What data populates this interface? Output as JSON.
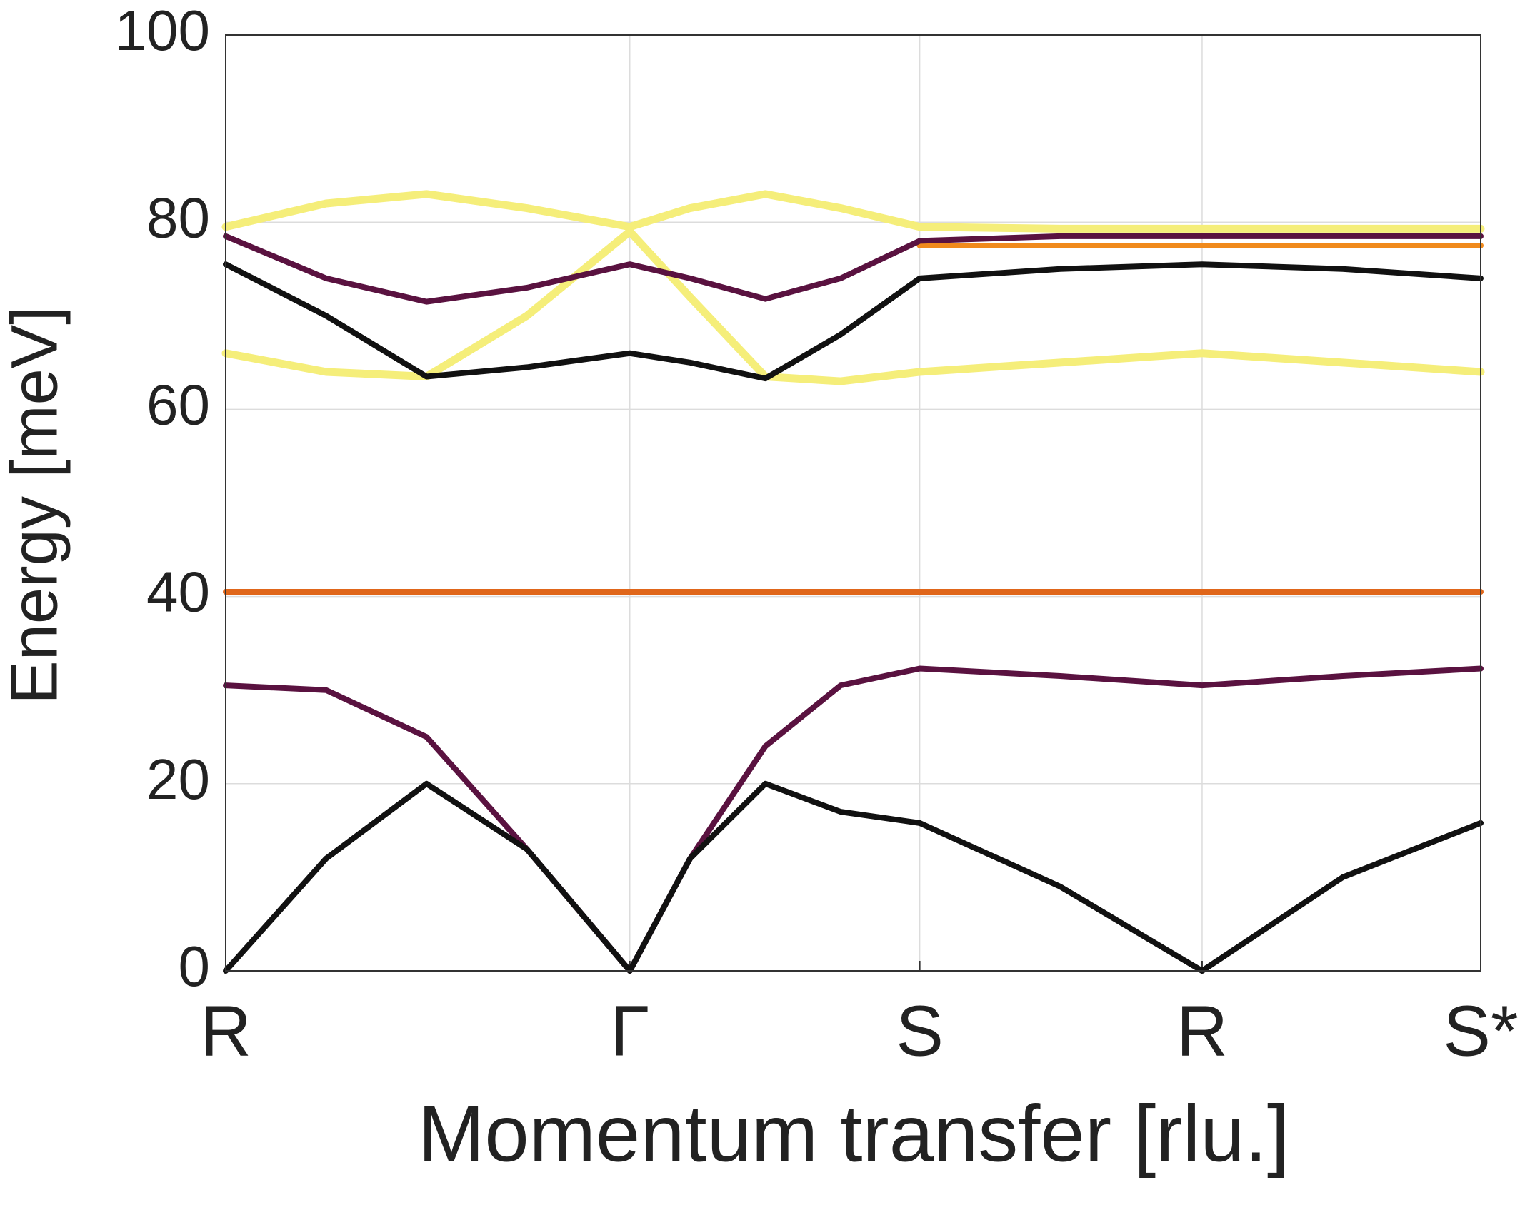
{
  "chart_data": {
    "type": "line",
    "ylabel": "Energy [meV]",
    "xlabel": "Momentum transfer [rlu.]",
    "x": [
      0,
      0.08,
      0.16,
      0.24,
      0.322,
      0.37,
      0.43,
      0.49,
      0.553,
      0.665,
      0.778,
      0.89,
      1.0
    ],
    "xlim": [
      0,
      1
    ],
    "xticks": [
      {
        "value": 0,
        "label": "R"
      },
      {
        "value": 0.322,
        "label": "Γ"
      },
      {
        "value": 0.553,
        "label": "S"
      },
      {
        "value": 0.778,
        "label": "R"
      },
      {
        "value": 1.0,
        "label": "S*"
      }
    ],
    "ylim": [
      0,
      100
    ],
    "yticks": [
      0,
      20,
      40,
      60,
      80,
      100
    ],
    "grid": true,
    "series": [
      {
        "color": "#f5ee7a",
        "values": [
          79.5,
          82,
          83,
          81.5,
          79.5,
          81.5,
          83,
          81.5,
          79.5,
          79.3,
          79.3,
          79.3,
          79.3
        ]
      },
      {
        "color": "#f5ee7a",
        "values": [
          66,
          64,
          63.5,
          70,
          79,
          72,
          63.5,
          63,
          64,
          65,
          66,
          65,
          64
        ]
      },
      {
        "color": "#f08a1c",
        "values": [
          null,
          null,
          null,
          null,
          null,
          null,
          null,
          null,
          77.5,
          77.5,
          77.5,
          77.5,
          77.5
        ]
      },
      {
        "color": "#5a1240",
        "values": [
          78.5,
          74,
          71.5,
          73,
          75.5,
          74,
          71.8,
          74,
          78,
          78.5,
          78.5,
          78.5,
          78.5
        ]
      },
      {
        "color": "#111111",
        "values": [
          75.5,
          70,
          63.5,
          64.5,
          66,
          65,
          63.3,
          68,
          74,
          75,
          75.5,
          75,
          74
        ]
      },
      {
        "color": "#e0661a",
        "values": [
          40.5,
          40.5,
          40.5,
          40.5,
          40.5,
          40.5,
          40.5,
          40.5,
          40.5,
          40.5,
          40.5,
          40.5,
          40.5
        ]
      },
      {
        "color": "#5a1240",
        "values": [
          30.5,
          30,
          25,
          13,
          0,
          12,
          24,
          30.5,
          32.3,
          31.5,
          30.5,
          31.5,
          32.3
        ]
      },
      {
        "color": "#111111",
        "values": [
          0,
          12,
          20,
          13,
          0,
          12,
          20,
          17,
          15.8,
          9,
          0,
          10,
          15.8
        ]
      }
    ]
  }
}
